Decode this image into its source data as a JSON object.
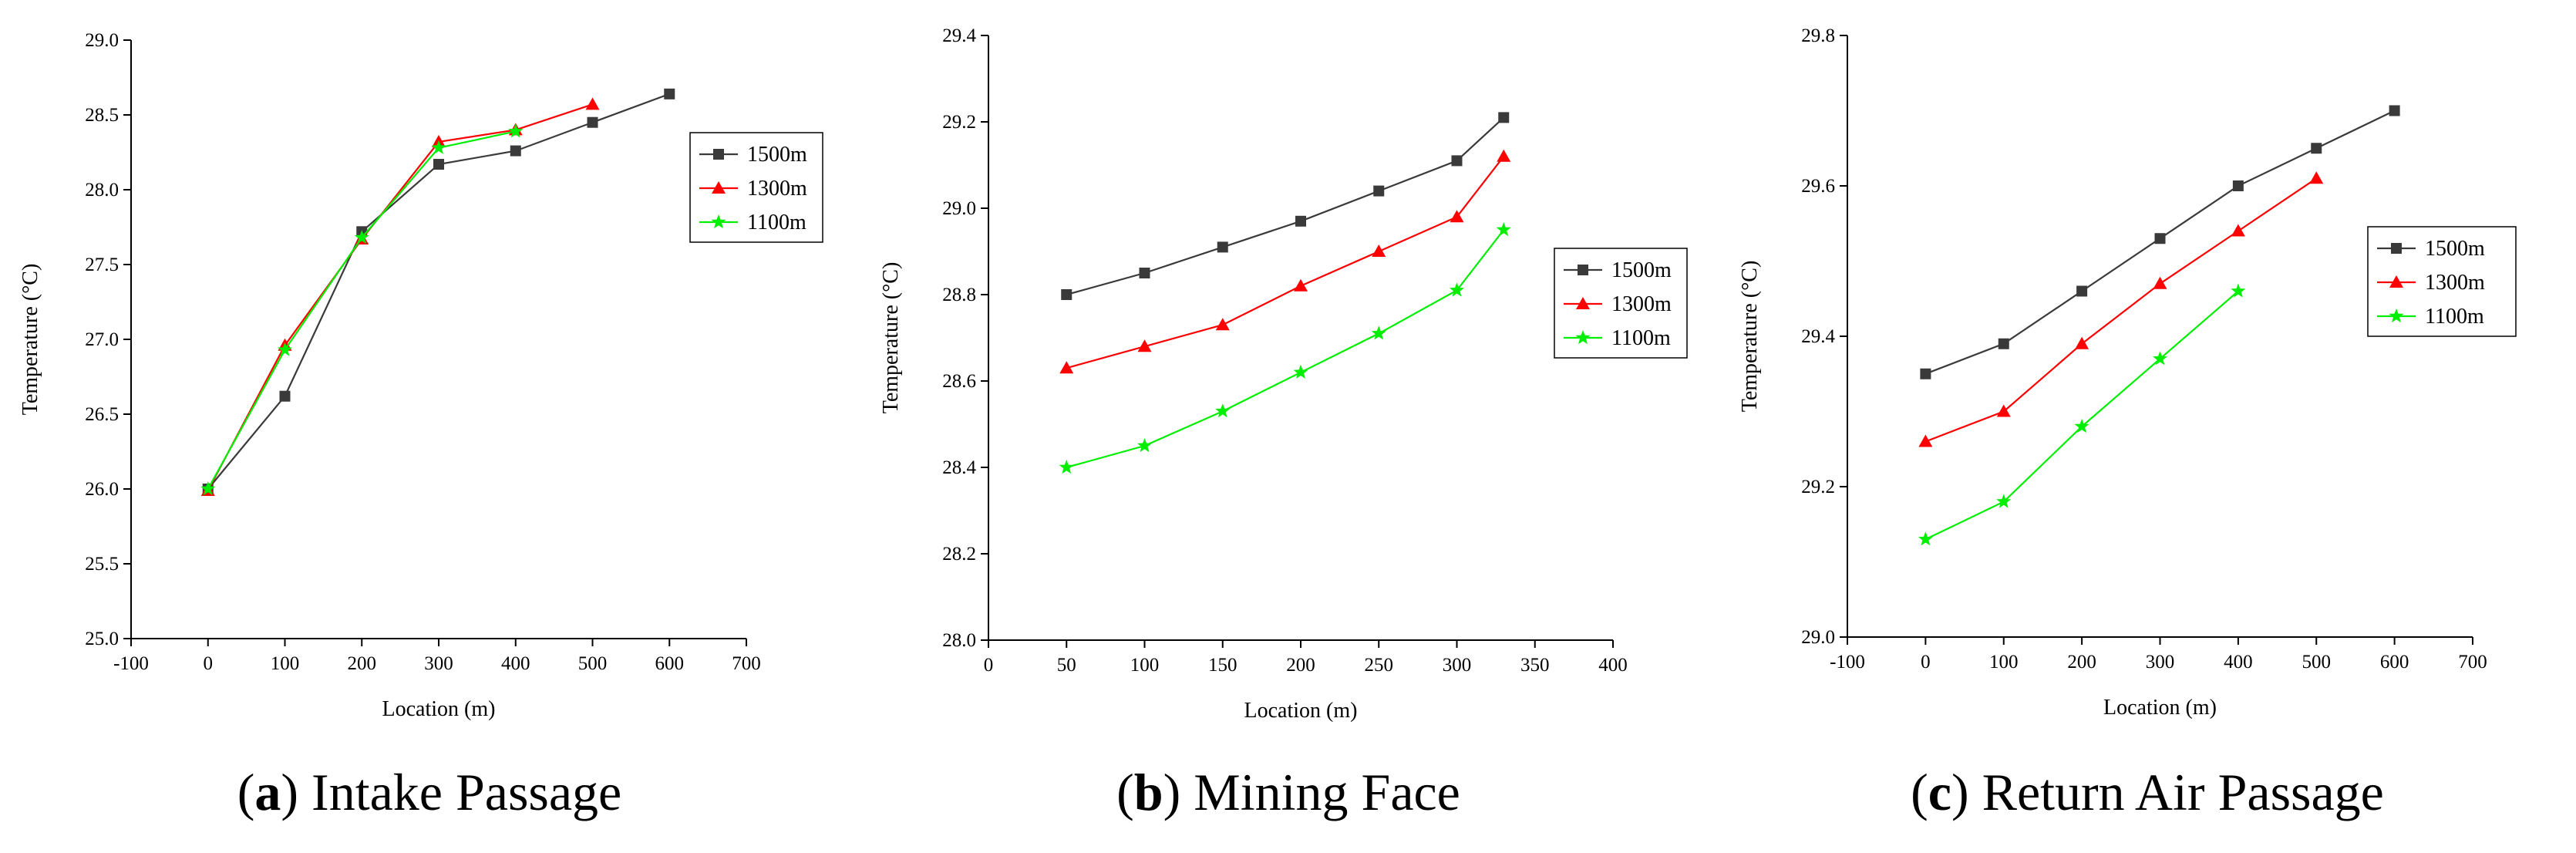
{
  "captions": [
    {
      "letter": "a",
      "text": "Intake Passage"
    },
    {
      "letter": "b",
      "text": "Mining Face"
    },
    {
      "letter": "c",
      "text": "Return Air Passage"
    }
  ],
  "series_colors": {
    "1500m": "#3a3a3a",
    "1300m": "#ff0000",
    "1100m": "#00ee00"
  },
  "chart_data": [
    {
      "type": "line",
      "panel": "a",
      "xlabel": "Location (m)",
      "ylabel": "Temperature (°C)",
      "xlim": [
        -100,
        700
      ],
      "ylim": [
        25.0,
        29.0
      ],
      "xticks": [
        -100,
        0,
        100,
        200,
        300,
        400,
        500,
        600,
        700
      ],
      "xtick_labels": [
        "-100",
        "0",
        "100",
        "200",
        "300",
        "400",
        "500",
        "600",
        "700"
      ],
      "yticks": [
        25.0,
        25.5,
        26.0,
        26.5,
        27.0,
        27.5,
        28.0,
        28.5,
        29.0
      ],
      "ytick_labels": [
        "25.0",
        "25.5",
        "26.0",
        "26.5",
        "27.0",
        "27.5",
        "28.0",
        "28.5",
        "29.0"
      ],
      "legend": "right",
      "series": [
        {
          "name": "1500m",
          "marker": "square",
          "x": [
            0,
            100,
            200,
            300,
            400,
            500,
            600
          ],
          "y": [
            26.0,
            26.62,
            27.72,
            28.17,
            28.26,
            28.45,
            28.64
          ]
        },
        {
          "name": "1300m",
          "marker": "triangle",
          "x": [
            0,
            100,
            200,
            300,
            400,
            500
          ],
          "y": [
            25.99,
            26.96,
            27.67,
            28.32,
            28.4,
            28.57
          ]
        },
        {
          "name": "1100m",
          "marker": "star",
          "x": [
            0,
            100,
            200,
            300,
            400
          ],
          "y": [
            26.0,
            26.93,
            27.68,
            28.28,
            28.39
          ]
        }
      ]
    },
    {
      "type": "line",
      "panel": "b",
      "xlabel": "Location (m)",
      "ylabel": "Temperature (°C)",
      "xlim": [
        0,
        400
      ],
      "ylim": [
        28.0,
        29.4
      ],
      "xticks": [
        0,
        50,
        100,
        150,
        200,
        250,
        300,
        350,
        400
      ],
      "xtick_labels": [
        "0",
        "50",
        "100",
        "150",
        "200",
        "250",
        "300",
        "350",
        "400"
      ],
      "yticks": [
        28.0,
        28.2,
        28.4,
        28.6,
        28.8,
        29.0,
        29.2,
        29.4
      ],
      "ytick_labels": [
        "28.0",
        "28.2",
        "28.4",
        "28.6",
        "28.8",
        "29.0",
        "29.2",
        "29.4"
      ],
      "legend": "right",
      "series": [
        {
          "name": "1500m",
          "marker": "square",
          "x": [
            50,
            100,
            150,
            200,
            250,
            300,
            330
          ],
          "y": [
            28.8,
            28.85,
            28.91,
            28.97,
            29.04,
            29.11,
            29.21
          ]
        },
        {
          "name": "1300m",
          "marker": "triangle",
          "x": [
            50,
            100,
            150,
            200,
            250,
            300,
            330
          ],
          "y": [
            28.63,
            28.68,
            28.73,
            28.82,
            28.9,
            28.98,
            29.12
          ]
        },
        {
          "name": "1100m",
          "marker": "star",
          "x": [
            50,
            100,
            150,
            200,
            250,
            300,
            330
          ],
          "y": [
            28.4,
            28.45,
            28.53,
            28.62,
            28.71,
            28.81,
            28.95
          ]
        }
      ]
    },
    {
      "type": "line",
      "panel": "c",
      "xlabel": "Location (m)",
      "ylabel": "Temperature (°C)",
      "xlim": [
        -100,
        700
      ],
      "ylim": [
        29.0,
        29.8
      ],
      "xticks": [
        -100,
        0,
        100,
        200,
        300,
        400,
        500,
        600,
        700
      ],
      "xtick_labels": [
        "-100",
        "0",
        "100",
        "200",
        "300",
        "400",
        "500",
        "600",
        "700"
      ],
      "yticks": [
        29.0,
        29.2,
        29.4,
        29.6,
        29.8
      ],
      "ytick_labels": [
        "29.0",
        "29.2",
        "29.4",
        "29.6",
        "29.8"
      ],
      "legend": "top-right",
      "series": [
        {
          "name": "1500m",
          "marker": "square",
          "x": [
            0,
            100,
            200,
            300,
            400,
            500,
            600
          ],
          "y": [
            29.35,
            29.39,
            29.46,
            29.53,
            29.6,
            29.65,
            29.7
          ]
        },
        {
          "name": "1300m",
          "marker": "triangle",
          "x": [
            0,
            100,
            200,
            300,
            400,
            500
          ],
          "y": [
            29.26,
            29.3,
            29.39,
            29.47,
            29.54,
            29.61
          ]
        },
        {
          "name": "1100m",
          "marker": "star",
          "x": [
            0,
            100,
            200,
            300,
            400
          ],
          "y": [
            29.13,
            29.18,
            29.28,
            29.37,
            29.46
          ]
        }
      ]
    }
  ]
}
